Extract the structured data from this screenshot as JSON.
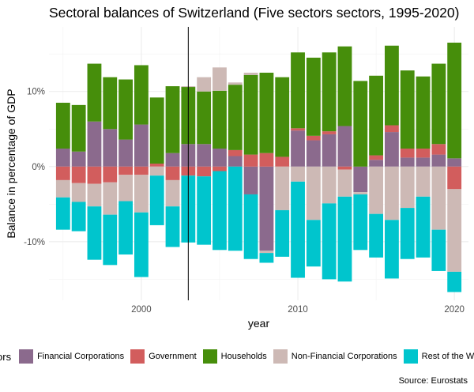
{
  "chart_data": {
    "type": "bar",
    "title": "Sectoral balances of Switzerland (Five sectors sectors, 1995-2020)",
    "xlabel": "year",
    "ylabel": "Balance in percentage of GDP",
    "x_ticks": [
      "2000",
      "2010",
      "2020"
    ],
    "y_ticks": [
      "10%",
      "0%",
      "-10%"
    ],
    "xlim": [
      1994.1,
      2020.9
    ],
    "ylim": [
      -17.8,
      18.6
    ],
    "grid": true,
    "stacked": true,
    "vline": 2003,
    "legend_title": "Sectors",
    "legend_position": "bottom",
    "source": "Source: Eurostats",
    "categories": [
      1995,
      1996,
      1997,
      1998,
      1999,
      2000,
      2001,
      2002,
      2003,
      2004,
      2005,
      2006,
      2007,
      2008,
      2009,
      2010,
      2011,
      2012,
      2013,
      2014,
      2015,
      2016,
      2017,
      2018,
      2019,
      2020
    ],
    "series": [
      {
        "name": "Financial Corporations",
        "color": "#8B6A8D",
        "values": [
          2.4,
          2.0,
          6.0,
          5.0,
          3.6,
          5.6,
          0.0,
          1.8,
          3.0,
          3.0,
          2.4,
          1.4,
          -3.7,
          -11.2,
          0.0,
          4.8,
          3.5,
          4.3,
          5.4,
          -3.4,
          0.9,
          4.6,
          1.2,
          1.2,
          1.6,
          1.1
        ]
      },
      {
        "name": "Government",
        "color": "#D25D5D",
        "values": [
          -1.8,
          -2.2,
          -2.3,
          -2.1,
          -1.1,
          -1.1,
          0.4,
          -1.8,
          -1.2,
          -1.3,
          -0.6,
          0.8,
          1.6,
          1.8,
          1.3,
          0.3,
          0.6,
          0.4,
          -0.4,
          0.0,
          0.6,
          0.9,
          1.2,
          1.2,
          1.4,
          -3.0
        ]
      },
      {
        "name": "Households",
        "color": "#468E0B",
        "values": [
          6.1,
          6.2,
          7.7,
          6.9,
          8.0,
          7.9,
          8.8,
          8.9,
          7.6,
          7.0,
          7.7,
          8.7,
          10.6,
          10.7,
          10.6,
          10.1,
          10.4,
          10.5,
          10.6,
          11.4,
          10.6,
          10.6,
          10.4,
          9.6,
          10.7,
          15.4
        ]
      },
      {
        "name": "Non-Financial Corporations",
        "color": "#CDB9B5",
        "values": [
          -2.3,
          -2.5,
          -3.0,
          -4.3,
          -3.5,
          -5.0,
          -1.2,
          -3.5,
          0.1,
          1.9,
          3.1,
          0.3,
          0.3,
          -0.3,
          -5.8,
          -2.0,
          -7.1,
          -4.9,
          -3.6,
          -0.3,
          -6.3,
          -7.1,
          -5.5,
          -4.0,
          -8.4,
          -11.0
        ]
      },
      {
        "name": "Rest of the World",
        "color": "#00C5CD",
        "values": [
          -4.3,
          -3.9,
          -7.1,
          -6.7,
          -7.1,
          -8.6,
          -6.6,
          -5.4,
          -8.9,
          -9.1,
          -10.5,
          -11.2,
          -8.6,
          -1.3,
          -6.2,
          -12.8,
          -6.2,
          -10.1,
          -11.3,
          -7.4,
          -5.8,
          -7.8,
          -6.8,
          -8.1,
          -5.5,
          -2.7
        ]
      }
    ]
  }
}
